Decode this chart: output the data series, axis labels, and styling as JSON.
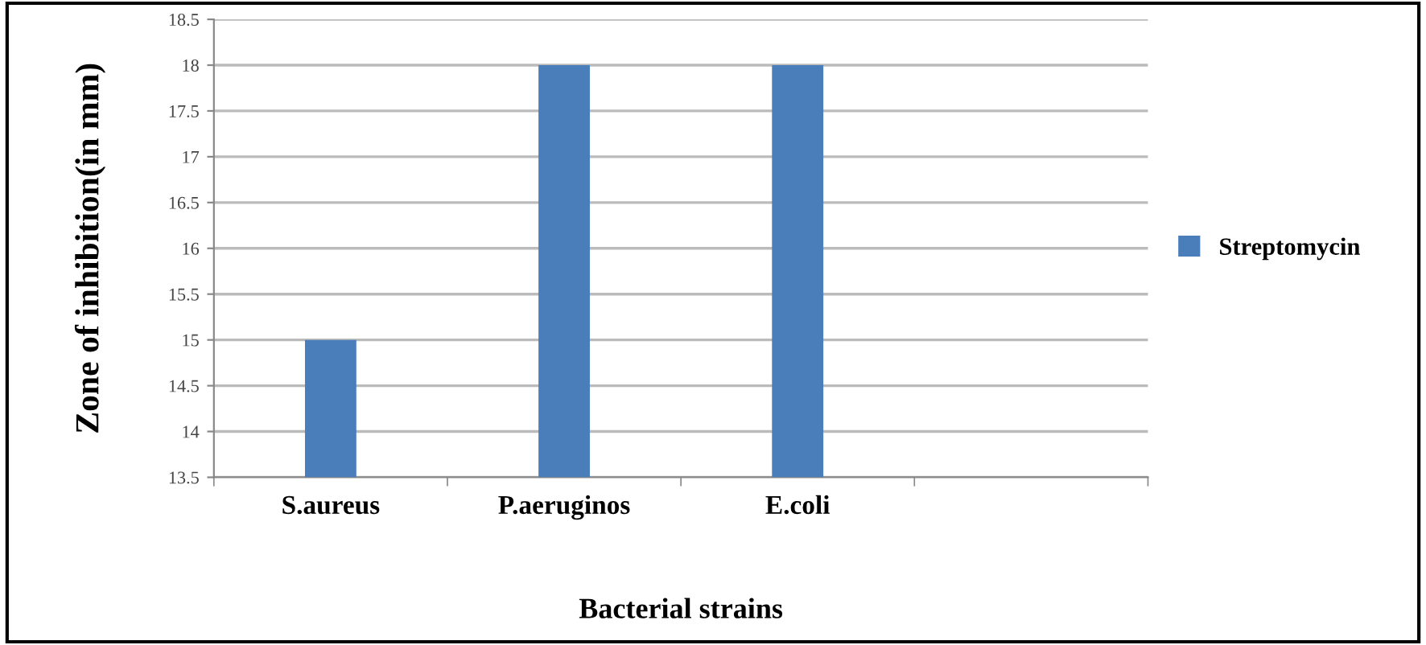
{
  "chart_data": {
    "type": "bar",
    "xlabel": "Bacterial strains",
    "ylabel": "Zone of inhibition(in mm)",
    "categories": [
      "S.aureus",
      "P.aeruginos",
      "E.coli",
      null
    ],
    "series": [
      {
        "name": "Streptomycin",
        "color": "#4a7ebb",
        "values": [
          15,
          18,
          18,
          null
        ]
      }
    ],
    "ylim": [
      13.5,
      18.5
    ],
    "yticks": [
      13.5,
      14,
      14.5,
      15,
      15.5,
      16,
      16.5,
      17,
      17.5,
      18,
      18.5
    ],
    "grid": "y",
    "legend": "right"
  }
}
